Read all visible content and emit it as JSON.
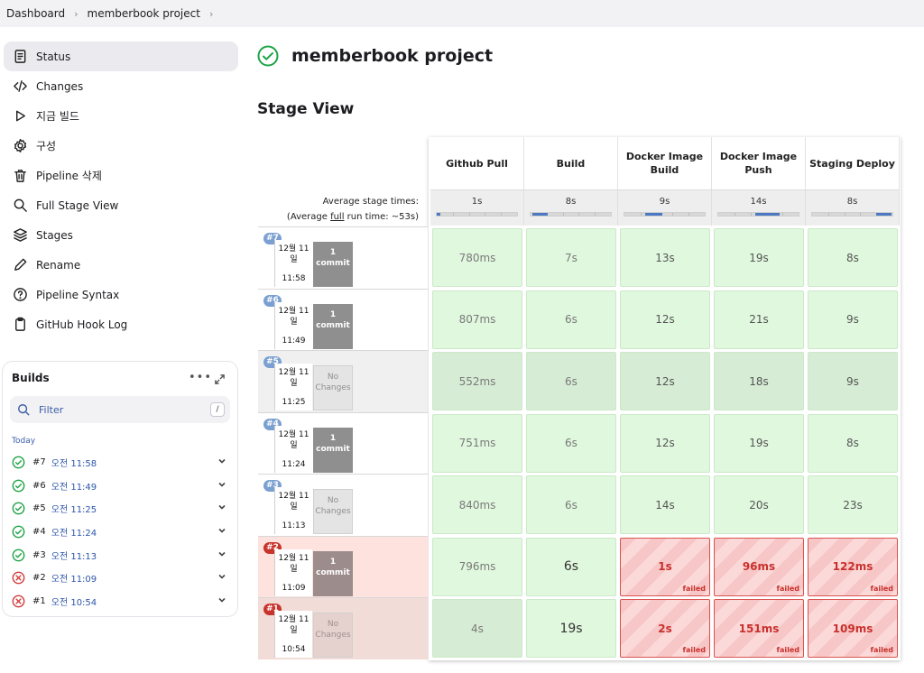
{
  "breadcrumb": [
    "Dashboard",
    "memberbook project"
  ],
  "sidebar": {
    "items": [
      {
        "label": "Status",
        "icon": "status-icon"
      },
      {
        "label": "Changes",
        "icon": "code-icon"
      },
      {
        "label": "지금 빌드",
        "icon": "play-icon"
      },
      {
        "label": "구성",
        "icon": "gear-icon"
      },
      {
        "label": "Pipeline 삭제",
        "icon": "trash-icon"
      },
      {
        "label": "Full Stage View",
        "icon": "search-icon"
      },
      {
        "label": "Stages",
        "icon": "layers-icon"
      },
      {
        "label": "Rename",
        "icon": "pencil-icon"
      },
      {
        "label": "Pipeline Syntax",
        "icon": "help-icon"
      },
      {
        "label": "GitHub Hook Log",
        "icon": "clipboard-icon"
      }
    ]
  },
  "builds": {
    "title": "Builds",
    "filter_placeholder": "Filter",
    "filter_shortcut": "/",
    "group": "Today",
    "list": [
      {
        "num": "#7",
        "time": "오전 11:58",
        "status": "success"
      },
      {
        "num": "#6",
        "time": "오전 11:49",
        "status": "success"
      },
      {
        "num": "#5",
        "time": "오전 11:25",
        "status": "success"
      },
      {
        "num": "#4",
        "time": "오전 11:24",
        "status": "success"
      },
      {
        "num": "#3",
        "time": "오전 11:13",
        "status": "success"
      },
      {
        "num": "#2",
        "time": "오전 11:09",
        "status": "failed"
      },
      {
        "num": "#1",
        "time": "오전 10:54",
        "status": "failed"
      }
    ]
  },
  "main": {
    "title": "memberbook project",
    "stage_view_title": "Stage View",
    "avg_label_1": "Average stage times:",
    "avg_label_2a": "(Average ",
    "avg_label_full": "full",
    "avg_label_2b": " run time: ~53s)"
  },
  "stages": [
    {
      "name": "Github Pull",
      "avg": "1s",
      "avg_fraction": 0.02
    },
    {
      "name": "Build",
      "avg": "8s",
      "avg_fraction": 0.17
    },
    {
      "name": "Docker Image Build",
      "avg": "9s",
      "avg_fraction": 0.19
    },
    {
      "name": "Docker Image Push",
      "avg": "14s",
      "avg_fraction": 0.28
    },
    {
      "name": "Staging Deploy",
      "avg": "8s",
      "avg_fraction": 0.17
    }
  ],
  "runs": [
    {
      "badge": "#7",
      "date": "12월 11 일",
      "time": "11:58",
      "commit_count": "1",
      "commit_word": "commit",
      "changes": true,
      "status": "success",
      "cells": [
        {
          "v": "780ms",
          "s": "ok"
        },
        {
          "v": "7s",
          "s": "ok"
        },
        {
          "v": "13s",
          "s": "ok"
        },
        {
          "v": "19s",
          "s": "ok"
        },
        {
          "v": "8s",
          "s": "ok"
        }
      ]
    },
    {
      "badge": "#6",
      "date": "12월 11 일",
      "time": "11:49",
      "commit_count": "1",
      "commit_word": "commit",
      "changes": true,
      "status": "success",
      "cells": [
        {
          "v": "807ms",
          "s": "ok"
        },
        {
          "v": "6s",
          "s": "ok"
        },
        {
          "v": "12s",
          "s": "ok"
        },
        {
          "v": "21s",
          "s": "ok"
        },
        {
          "v": "9s",
          "s": "ok"
        }
      ]
    },
    {
      "badge": "#5",
      "date": "12월 11 일",
      "time": "11:25",
      "commit_count": "No",
      "commit_word": "Changes",
      "changes": false,
      "status": "success",
      "cells": [
        {
          "v": "552ms",
          "s": "ok"
        },
        {
          "v": "6s",
          "s": "ok"
        },
        {
          "v": "12s",
          "s": "ok"
        },
        {
          "v": "18s",
          "s": "ok"
        },
        {
          "v": "9s",
          "s": "ok"
        }
      ]
    },
    {
      "badge": "#4",
      "date": "12월 11 일",
      "time": "11:24",
      "commit_count": "1",
      "commit_word": "commit",
      "changes": true,
      "status": "success",
      "cells": [
        {
          "v": "751ms",
          "s": "ok"
        },
        {
          "v": "6s",
          "s": "ok"
        },
        {
          "v": "12s",
          "s": "ok"
        },
        {
          "v": "19s",
          "s": "ok"
        },
        {
          "v": "8s",
          "s": "ok"
        }
      ]
    },
    {
      "badge": "#3",
      "date": "12월 11 일",
      "time": "11:13",
      "commit_count": "No",
      "commit_word": "Changes",
      "changes": false,
      "status": "success",
      "cells": [
        {
          "v": "840ms",
          "s": "ok"
        },
        {
          "v": "6s",
          "s": "ok"
        },
        {
          "v": "14s",
          "s": "ok"
        },
        {
          "v": "20s",
          "s": "ok"
        },
        {
          "v": "23s",
          "s": "ok"
        }
      ]
    },
    {
      "badge": "#2",
      "date": "12월 11 일",
      "time": "11:09",
      "commit_count": "1",
      "commit_word": "commit",
      "changes": true,
      "status": "failed",
      "cells": [
        {
          "v": "796ms",
          "s": "ok"
        },
        {
          "v": "6s",
          "s": "ok"
        },
        {
          "v": "1s",
          "s": "failed"
        },
        {
          "v": "96ms",
          "s": "failed"
        },
        {
          "v": "122ms",
          "s": "failed"
        }
      ]
    },
    {
      "badge": "#1",
      "date": "12월 11 일",
      "time": "10:54",
      "commit_count": "No",
      "commit_word": "Changes",
      "changes": false,
      "status": "failed",
      "cells": [
        {
          "v": "4s",
          "s": "ok"
        },
        {
          "v": "19s",
          "s": "ok"
        },
        {
          "v": "2s",
          "s": "failed"
        },
        {
          "v": "151ms",
          "s": "failed"
        },
        {
          "v": "109ms",
          "s": "failed"
        }
      ]
    }
  ],
  "failed_label": "failed",
  "colors": {
    "success": "#1ea446",
    "failed": "#d23b3b",
    "accent": "#2d55a8"
  }
}
